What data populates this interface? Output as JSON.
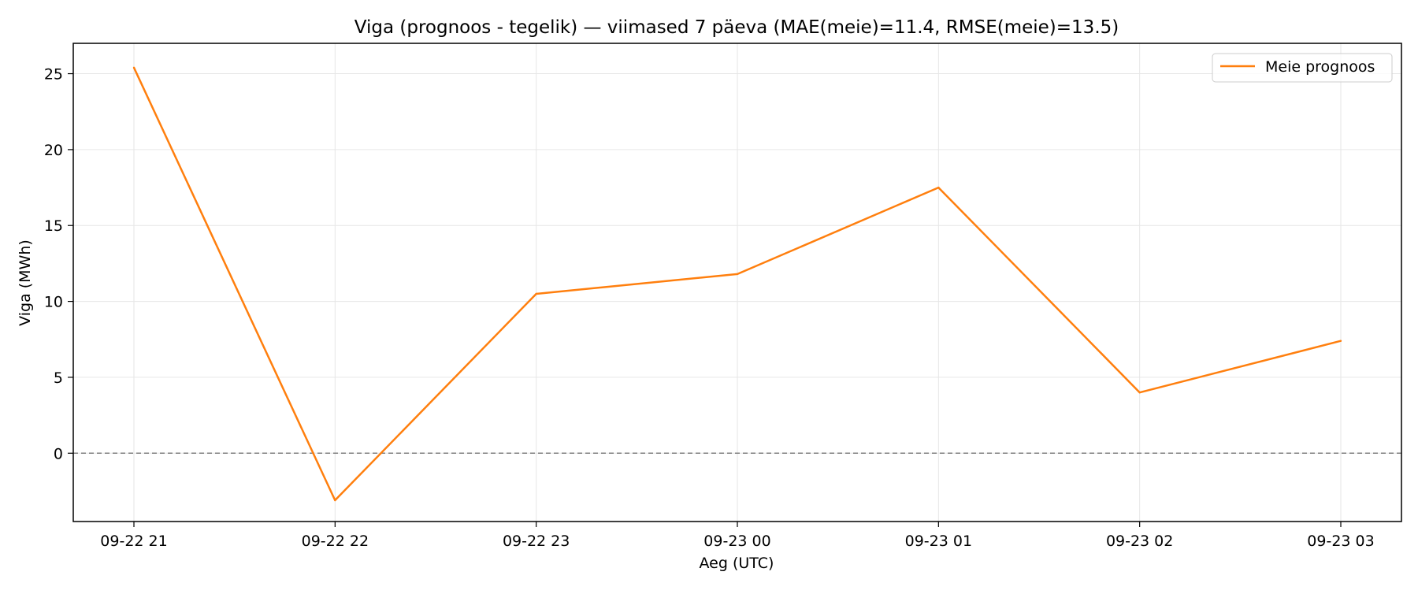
{
  "chart_data": {
    "type": "line",
    "title": "Viga (prognoos - tegelik) — viimased 7 päeva (MAE(meie)=11.4, RMSE(meie)=13.5)",
    "xlabel": "Aeg (UTC)",
    "ylabel": "Viga (MWh)",
    "x": [
      "09-22 21",
      "09-22 22",
      "09-22 23",
      "09-23 00",
      "09-23 01",
      "09-23 02",
      "09-23 03"
    ],
    "series": [
      {
        "name": "Meie prognoos",
        "color": "#ff7f0e",
        "values": [
          25.4,
          -3.1,
          10.5,
          11.8,
          17.5,
          4.0,
          7.4
        ]
      }
    ],
    "ylim": [
      -4.5,
      27.0
    ],
    "yticks": [
      0,
      5,
      10,
      15,
      20,
      25
    ],
    "reference_line": {
      "y": 0,
      "style": "dashed",
      "color": "#808080"
    },
    "grid": true,
    "legend_position": "top-right"
  }
}
